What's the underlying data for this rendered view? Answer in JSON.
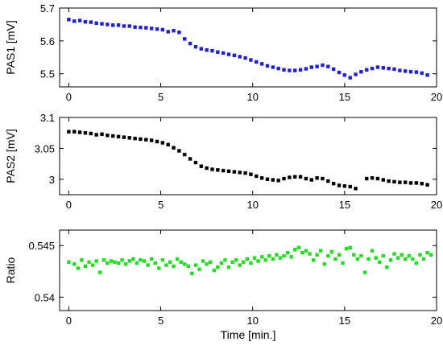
{
  "chart_data": [
    {
      "type": "scatter",
      "ylabel": "PAS1 [mV]",
      "xlabel": "",
      "xlim": [
        -0.5,
        20
      ],
      "ylim": [
        5.46,
        5.7
      ],
      "xticks": [
        "0",
        "5",
        "10",
        "15",
        "20"
      ],
      "xtick_values": [
        0,
        5,
        10,
        15,
        20
      ],
      "yticks": [
        "5.5",
        "5.6",
        "5.7"
      ],
      "ytick_values": [
        5.5,
        5.6,
        5.7
      ],
      "grid": false,
      "color": "#1f1fd6",
      "points": [
        [
          0.0,
          5.665
        ],
        [
          0.3,
          5.66
        ],
        [
          0.6,
          5.662
        ],
        [
          0.9,
          5.658
        ],
        [
          1.2,
          5.657
        ],
        [
          1.5,
          5.654
        ],
        [
          1.8,
          5.652
        ],
        [
          2.1,
          5.65
        ],
        [
          2.4,
          5.648
        ],
        [
          2.7,
          5.648
        ],
        [
          3.0,
          5.645
        ],
        [
          3.3,
          5.645
        ],
        [
          3.6,
          5.642
        ],
        [
          3.9,
          5.641
        ],
        [
          4.2,
          5.64
        ],
        [
          4.5,
          5.638
        ],
        [
          4.8,
          5.636
        ],
        [
          5.1,
          5.634
        ],
        [
          5.4,
          5.628
        ],
        [
          5.7,
          5.631
        ],
        [
          6.0,
          5.626
        ],
        [
          6.3,
          5.606
        ],
        [
          6.6,
          5.592
        ],
        [
          6.9,
          5.582
        ],
        [
          7.2,
          5.576
        ],
        [
          7.5,
          5.572
        ],
        [
          7.8,
          5.57
        ],
        [
          8.1,
          5.566
        ],
        [
          8.4,
          5.563
        ],
        [
          8.7,
          5.559
        ],
        [
          9.0,
          5.556
        ],
        [
          9.3,
          5.552
        ],
        [
          9.6,
          5.548
        ],
        [
          9.9,
          5.542
        ],
        [
          10.2,
          5.536
        ],
        [
          10.5,
          5.53
        ],
        [
          10.8,
          5.524
        ],
        [
          11.1,
          5.52
        ],
        [
          11.4,
          5.516
        ],
        [
          11.7,
          5.512
        ],
        [
          12.0,
          5.51
        ],
        [
          12.3,
          5.51
        ],
        [
          12.6,
          5.512
        ],
        [
          12.9,
          5.515
        ],
        [
          13.2,
          5.52
        ],
        [
          13.5,
          5.522
        ],
        [
          13.8,
          5.526
        ],
        [
          14.1,
          5.522
        ],
        [
          14.4,
          5.514
        ],
        [
          14.7,
          5.504
        ],
        [
          15.0,
          5.496
        ],
        [
          15.3,
          5.488
        ],
        [
          15.6,
          5.498
        ],
        [
          15.9,
          5.506
        ],
        [
          16.2,
          5.512
        ],
        [
          16.5,
          5.516
        ],
        [
          16.8,
          5.52
        ],
        [
          17.1,
          5.518
        ],
        [
          17.4,
          5.516
        ],
        [
          17.7,
          5.514
        ],
        [
          18.0,
          5.51
        ],
        [
          18.3,
          5.508
        ],
        [
          18.6,
          5.506
        ],
        [
          18.9,
          5.505
        ],
        [
          19.2,
          5.502
        ],
        [
          19.5,
          5.496
        ]
      ]
    },
    {
      "type": "scatter",
      "ylabel": "PAS2 [mV]",
      "xlabel": "",
      "xlim": [
        -0.5,
        20
      ],
      "ylim": [
        2.975,
        3.1
      ],
      "xticks": [
        "0",
        "5",
        "10",
        "15",
        "20"
      ],
      "xtick_values": [
        0,
        5,
        10,
        15,
        20
      ],
      "yticks": [
        "3",
        "3.05",
        "3.1"
      ],
      "ytick_values": [
        3.0,
        3.05,
        3.1
      ],
      "grid": false,
      "color": "#000000",
      "points": [
        [
          0.0,
          3.077
        ],
        [
          0.3,
          3.077
        ],
        [
          0.6,
          3.076
        ],
        [
          0.9,
          3.075
        ],
        [
          1.2,
          3.074
        ],
        [
          1.5,
          3.072
        ],
        [
          1.8,
          3.073
        ],
        [
          2.1,
          3.071
        ],
        [
          2.4,
          3.07
        ],
        [
          2.7,
          3.069
        ],
        [
          3.0,
          3.068
        ],
        [
          3.3,
          3.067
        ],
        [
          3.6,
          3.066
        ],
        [
          3.9,
          3.065
        ],
        [
          4.2,
          3.064
        ],
        [
          4.5,
          3.063
        ],
        [
          4.8,
          3.061
        ],
        [
          5.1,
          3.059
        ],
        [
          5.4,
          3.056
        ],
        [
          5.7,
          3.051
        ],
        [
          6.0,
          3.046
        ],
        [
          6.3,
          3.04
        ],
        [
          6.6,
          3.033
        ],
        [
          6.9,
          3.027
        ],
        [
          7.2,
          3.021
        ],
        [
          7.5,
          3.018
        ],
        [
          7.8,
          3.016
        ],
        [
          8.1,
          3.015
        ],
        [
          8.4,
          3.014
        ],
        [
          8.7,
          3.013
        ],
        [
          9.0,
          3.012
        ],
        [
          9.3,
          3.011
        ],
        [
          9.6,
          3.01
        ],
        [
          9.9,
          3.008
        ],
        [
          10.2,
          3.005
        ],
        [
          10.5,
          3.002
        ],
        [
          10.8,
          3.0
        ],
        [
          11.1,
          2.999
        ],
        [
          11.4,
          2.998
        ],
        [
          11.7,
          3.001
        ],
        [
          12.0,
          3.003
        ],
        [
          12.3,
          3.004
        ],
        [
          12.6,
          3.004
        ],
        [
          12.9,
          3.001
        ],
        [
          13.2,
          2.999
        ],
        [
          13.5,
          3.002
        ],
        [
          13.8,
          3.001
        ],
        [
          14.1,
          2.997
        ],
        [
          14.4,
          2.993
        ],
        [
          14.7,
          2.99
        ],
        [
          15.0,
          2.989
        ],
        [
          15.3,
          2.988
        ],
        [
          15.6,
          2.985
        ],
        [
          16.2,
          3.001
        ],
        [
          16.5,
          3.002
        ],
        [
          16.8,
          3.001
        ],
        [
          17.1,
          2.999
        ],
        [
          17.4,
          2.997
        ],
        [
          17.7,
          2.996
        ],
        [
          18.0,
          2.995
        ],
        [
          18.3,
          2.995
        ],
        [
          18.6,
          2.994
        ],
        [
          18.9,
          2.994
        ],
        [
          19.2,
          2.993
        ],
        [
          19.5,
          2.991
        ]
      ]
    },
    {
      "type": "scatter",
      "ylabel": "Ratio",
      "xlabel": "Time [min.]",
      "xlim": [
        -0.5,
        20
      ],
      "ylim": [
        0.5387,
        0.5465
      ],
      "xticks": [
        "0",
        "5",
        "10",
        "15",
        "20"
      ],
      "xtick_values": [
        0,
        5,
        10,
        15,
        20
      ],
      "yticks": [
        "0.54",
        "0.545"
      ],
      "ytick_values": [
        0.54,
        0.545
      ],
      "grid": false,
      "color": "#22dd22",
      "points": [
        [
          0.0,
          0.5434
        ],
        [
          0.3,
          0.5432
        ],
        [
          0.5,
          0.5428
        ],
        [
          0.7,
          0.5436
        ],
        [
          0.9,
          0.543
        ],
        [
          1.1,
          0.5434
        ],
        [
          1.3,
          0.5431
        ],
        [
          1.5,
          0.5435
        ],
        [
          1.7,
          0.5424
        ],
        [
          1.9,
          0.5436
        ],
        [
          2.1,
          0.5433
        ],
        [
          2.3,
          0.5435
        ],
        [
          2.5,
          0.5434
        ],
        [
          2.7,
          0.5433
        ],
        [
          2.9,
          0.5436
        ],
        [
          3.1,
          0.5432
        ],
        [
          3.3,
          0.5435
        ],
        [
          3.5,
          0.5437
        ],
        [
          3.7,
          0.5433
        ],
        [
          3.9,
          0.5436
        ],
        [
          4.1,
          0.5435
        ],
        [
          4.3,
          0.5431
        ],
        [
          4.5,
          0.5437
        ],
        [
          4.7,
          0.5433
        ],
        [
          4.9,
          0.5428
        ],
        [
          5.1,
          0.5436
        ],
        [
          5.3,
          0.5431
        ],
        [
          5.5,
          0.5434
        ],
        [
          5.7,
          0.543
        ],
        [
          5.9,
          0.5437
        ],
        [
          6.1,
          0.5434
        ],
        [
          6.3,
          0.5432
        ],
        [
          6.5,
          0.543
        ],
        [
          6.7,
          0.5423
        ],
        [
          6.9,
          0.5431
        ],
        [
          7.1,
          0.5427
        ],
        [
          7.3,
          0.5435
        ],
        [
          7.5,
          0.5432
        ],
        [
          7.7,
          0.5434
        ],
        [
          7.9,
          0.5426
        ],
        [
          8.1,
          0.5429
        ],
        [
          8.3,
          0.5433
        ],
        [
          8.5,
          0.5436
        ],
        [
          8.7,
          0.5429
        ],
        [
          8.9,
          0.5434
        ],
        [
          9.1,
          0.5436
        ],
        [
          9.3,
          0.5431
        ],
        [
          9.5,
          0.5434
        ],
        [
          9.7,
          0.5437
        ],
        [
          9.9,
          0.5433
        ],
        [
          10.1,
          0.5438
        ],
        [
          10.3,
          0.5435
        ],
        [
          10.5,
          0.5439
        ],
        [
          10.7,
          0.5436
        ],
        [
          10.9,
          0.544
        ],
        [
          11.1,
          0.5437
        ],
        [
          11.3,
          0.5441
        ],
        [
          11.5,
          0.5438
        ],
        [
          11.7,
          0.544
        ],
        [
          11.9,
          0.5443
        ],
        [
          12.1,
          0.5439
        ],
        [
          12.3,
          0.5446
        ],
        [
          12.5,
          0.5448
        ],
        [
          12.7,
          0.5443
        ],
        [
          12.9,
          0.5445
        ],
        [
          13.1,
          0.5442
        ],
        [
          13.3,
          0.5436
        ],
        [
          13.5,
          0.5441
        ],
        [
          13.7,
          0.5445
        ],
        [
          13.9,
          0.5432
        ],
        [
          14.1,
          0.544
        ],
        [
          14.3,
          0.5444
        ],
        [
          14.5,
          0.5437
        ],
        [
          14.7,
          0.5441
        ],
        [
          14.9,
          0.5433
        ],
        [
          15.1,
          0.5447
        ],
        [
          15.3,
          0.5448
        ],
        [
          15.5,
          0.5441
        ],
        [
          15.7,
          0.5437
        ],
        [
          15.9,
          0.544
        ],
        [
          16.1,
          0.5424
        ],
        [
          16.3,
          0.5437
        ],
        [
          16.5,
          0.5445
        ],
        [
          16.7,
          0.5438
        ],
        [
          16.9,
          0.5434
        ],
        [
          17.1,
          0.544
        ],
        [
          17.3,
          0.5429
        ],
        [
          17.5,
          0.5436
        ],
        [
          17.7,
          0.5442
        ],
        [
          17.9,
          0.5438
        ],
        [
          18.1,
          0.5441
        ],
        [
          18.3,
          0.5437
        ],
        [
          18.5,
          0.544
        ],
        [
          18.7,
          0.5437
        ],
        [
          18.9,
          0.5433
        ],
        [
          19.1,
          0.5441
        ],
        [
          19.3,
          0.5437
        ],
        [
          19.5,
          0.5443
        ],
        [
          19.7,
          0.5441
        ]
      ]
    }
  ]
}
